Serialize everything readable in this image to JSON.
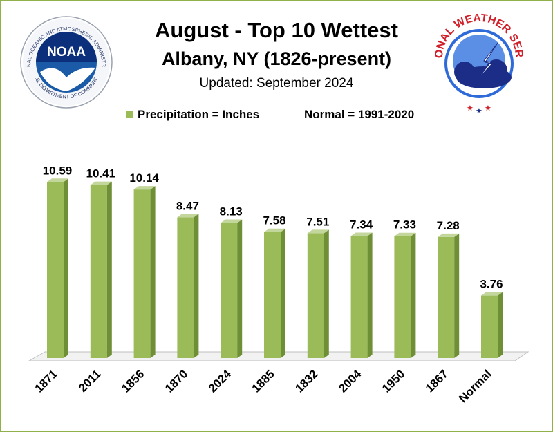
{
  "chart_data": {
    "type": "bar",
    "title": "August - Top 10 Wettest",
    "subtitle": "Albany, NY (1826-present)",
    "updated": "Updated: September 2024",
    "legend_series": "Precipitation = Inches",
    "legend_normal": "Normal = 1991-2020",
    "categories": [
      "1871",
      "2011",
      "1856",
      "1870",
      "2024",
      "1885",
      "1832",
      "2004",
      "1950",
      "1867",
      "Normal"
    ],
    "values": [
      10.59,
      10.41,
      10.14,
      8.47,
      8.13,
      7.58,
      7.51,
      7.34,
      7.33,
      7.28,
      3.76
    ],
    "data_labels": [
      "10.59",
      "10.41",
      "10.14",
      "8.47",
      "8.13",
      "7.58",
      "7.51",
      "7.34",
      "7.33",
      "7.28",
      "3.76"
    ],
    "ylim": [
      0,
      12
    ],
    "grid": false,
    "legend_position": "top",
    "colors": {
      "bar": "#9bbb59",
      "bar_side": "#6e8f35",
      "bar_top": "#c3d69b",
      "frame": "#8fb04a"
    }
  },
  "logos": {
    "left_logo_icon": "noaa-logo",
    "left_logo_text": "NOAA",
    "left_logo_ring_top": "NATIONAL OCEANIC AND ATMOSPHERIC ADMINISTRATION",
    "left_logo_ring_bottom": "U.S. DEPARTMENT OF COMMERCE",
    "right_logo_icon": "nws-logo",
    "right_logo_ring": "NATIONAL WEATHER SERVICE"
  }
}
